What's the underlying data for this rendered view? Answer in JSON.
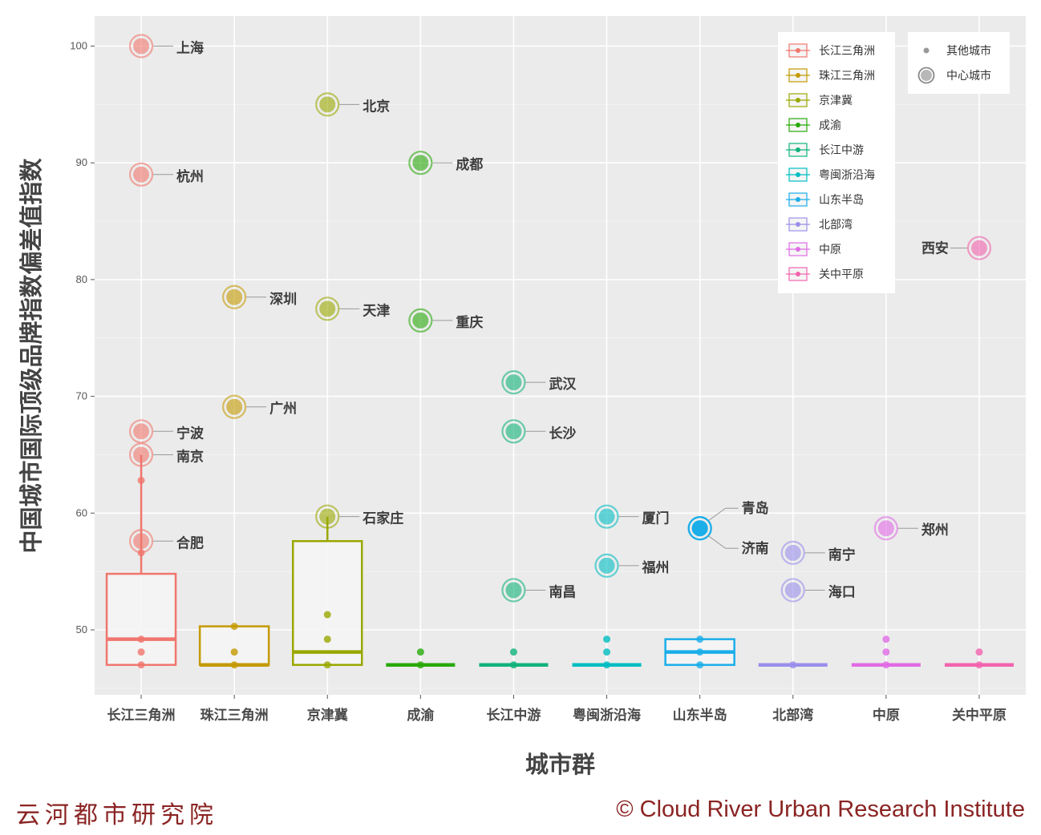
{
  "footer": {
    "left": "云河都市研究院",
    "right": "© Cloud River Urban Research Institute"
  },
  "legend_size": {
    "other": "其他城市",
    "center": "中心城市"
  },
  "chart_data": {
    "type": "boxplot",
    "xlabel": "城市群",
    "ylabel": "中国城市国际顶级品牌指数偏差值指数",
    "yticks": [
      50,
      60,
      70,
      80,
      90,
      100
    ],
    "grid": true,
    "legend_position": "top-right",
    "groups": [
      {
        "name": "长江三角洲",
        "color": "#F0766D",
        "box": {
          "lower": 47.0,
          "q1": 47.0,
          "median": 49.2,
          "q3": 54.8,
          "upper": 65.0
        },
        "centers": [
          {
            "city": "上海",
            "value": 100.0
          },
          {
            "city": "杭州",
            "value": 89.0
          },
          {
            "city": "宁波",
            "value": 67.0
          },
          {
            "city": "南京",
            "value": 65.0
          },
          {
            "city": "合肥",
            "value": 57.6
          }
        ],
        "others": [
          62.8,
          56.6,
          49.2,
          48.1,
          47.0
        ]
      },
      {
        "name": "珠江三角洲",
        "color": "#C49A00",
        "box": {
          "lower": 47.0,
          "q1": 47.0,
          "median": 47.0,
          "q3": 50.3,
          "upper": 50.3
        },
        "centers": [
          {
            "city": "深圳",
            "value": 78.5
          },
          {
            "city": "广州",
            "value": 69.1
          }
        ],
        "others": [
          50.3,
          48.1,
          47.0
        ]
      },
      {
        "name": "京津冀",
        "color": "#99A800",
        "box": {
          "lower": 47.0,
          "q1": 47.0,
          "median": 48.1,
          "q3": 57.6,
          "upper": 59.7
        },
        "centers": [
          {
            "city": "北京",
            "value": 95.0
          },
          {
            "city": "天津",
            "value": 77.5
          },
          {
            "city": "石家庄",
            "value": 59.7
          }
        ],
        "others": [
          51.3,
          49.2,
          47.0
        ]
      },
      {
        "name": "成渝",
        "color": "#28A90A",
        "box": {
          "lower": 47.0,
          "q1": 47.0,
          "median": 47.0,
          "q3": 47.0,
          "upper": 47.0
        },
        "centers": [
          {
            "city": "成都",
            "value": 90.0
          },
          {
            "city": "重庆",
            "value": 76.5
          }
        ],
        "others": [
          48.1,
          47.0
        ]
      },
      {
        "name": "长江中游",
        "color": "#10B37A",
        "box": {
          "lower": 47.0,
          "q1": 47.0,
          "median": 47.0,
          "q3": 47.0,
          "upper": 47.0
        },
        "centers": [
          {
            "city": "武汉",
            "value": 71.2
          },
          {
            "city": "长沙",
            "value": 67.0
          },
          {
            "city": "南昌",
            "value": 53.4
          }
        ],
        "others": [
          48.1,
          47.0
        ]
      },
      {
        "name": "粤闽浙沿海",
        "color": "#00BDC2",
        "box": {
          "lower": 47.0,
          "q1": 47.0,
          "median": 47.0,
          "q3": 47.0,
          "upper": 47.0
        },
        "centers": [
          {
            "city": "厦门",
            "value": 59.7
          },
          {
            "city": "福州",
            "value": 55.5
          }
        ],
        "others": [
          49.2,
          48.1,
          47.0
        ]
      },
      {
        "name": "山东半岛",
        "color": "#1AAEE8",
        "box": {
          "lower": 47.0,
          "q1": 47.0,
          "median": 48.1,
          "q3": 49.2,
          "upper": 49.2
        },
        "centers": [
          {
            "city": "青岛",
            "value": 58.7
          },
          {
            "city": "济南",
            "value": 58.7
          }
        ],
        "others": [
          49.2,
          48.1,
          47.0
        ]
      },
      {
        "name": "北部湾",
        "color": "#9A8FEB",
        "box": {
          "lower": 47.0,
          "q1": 47.0,
          "median": 47.0,
          "q3": 47.0,
          "upper": 47.0
        },
        "centers": [
          {
            "city": "南宁",
            "value": 56.6
          },
          {
            "city": "海口",
            "value": 53.4
          }
        ],
        "others": [
          47.0
        ]
      },
      {
        "name": "中原",
        "color": "#E16BE5",
        "box": {
          "lower": 47.0,
          "q1": 47.0,
          "median": 47.0,
          "q3": 47.0,
          "upper": 47.0
        },
        "centers": [
          {
            "city": "郑州",
            "value": 58.7
          }
        ],
        "others": [
          49.2,
          48.1,
          47.0
        ]
      },
      {
        "name": "关中平原",
        "color": "#F263AE",
        "box": {
          "lower": 47.0,
          "q1": 47.0,
          "median": 47.0,
          "q3": 47.0,
          "upper": 47.0
        },
        "centers": [
          {
            "city": "西安",
            "value": 82.7
          }
        ],
        "others": [
          48.1,
          47.0
        ]
      }
    ]
  }
}
